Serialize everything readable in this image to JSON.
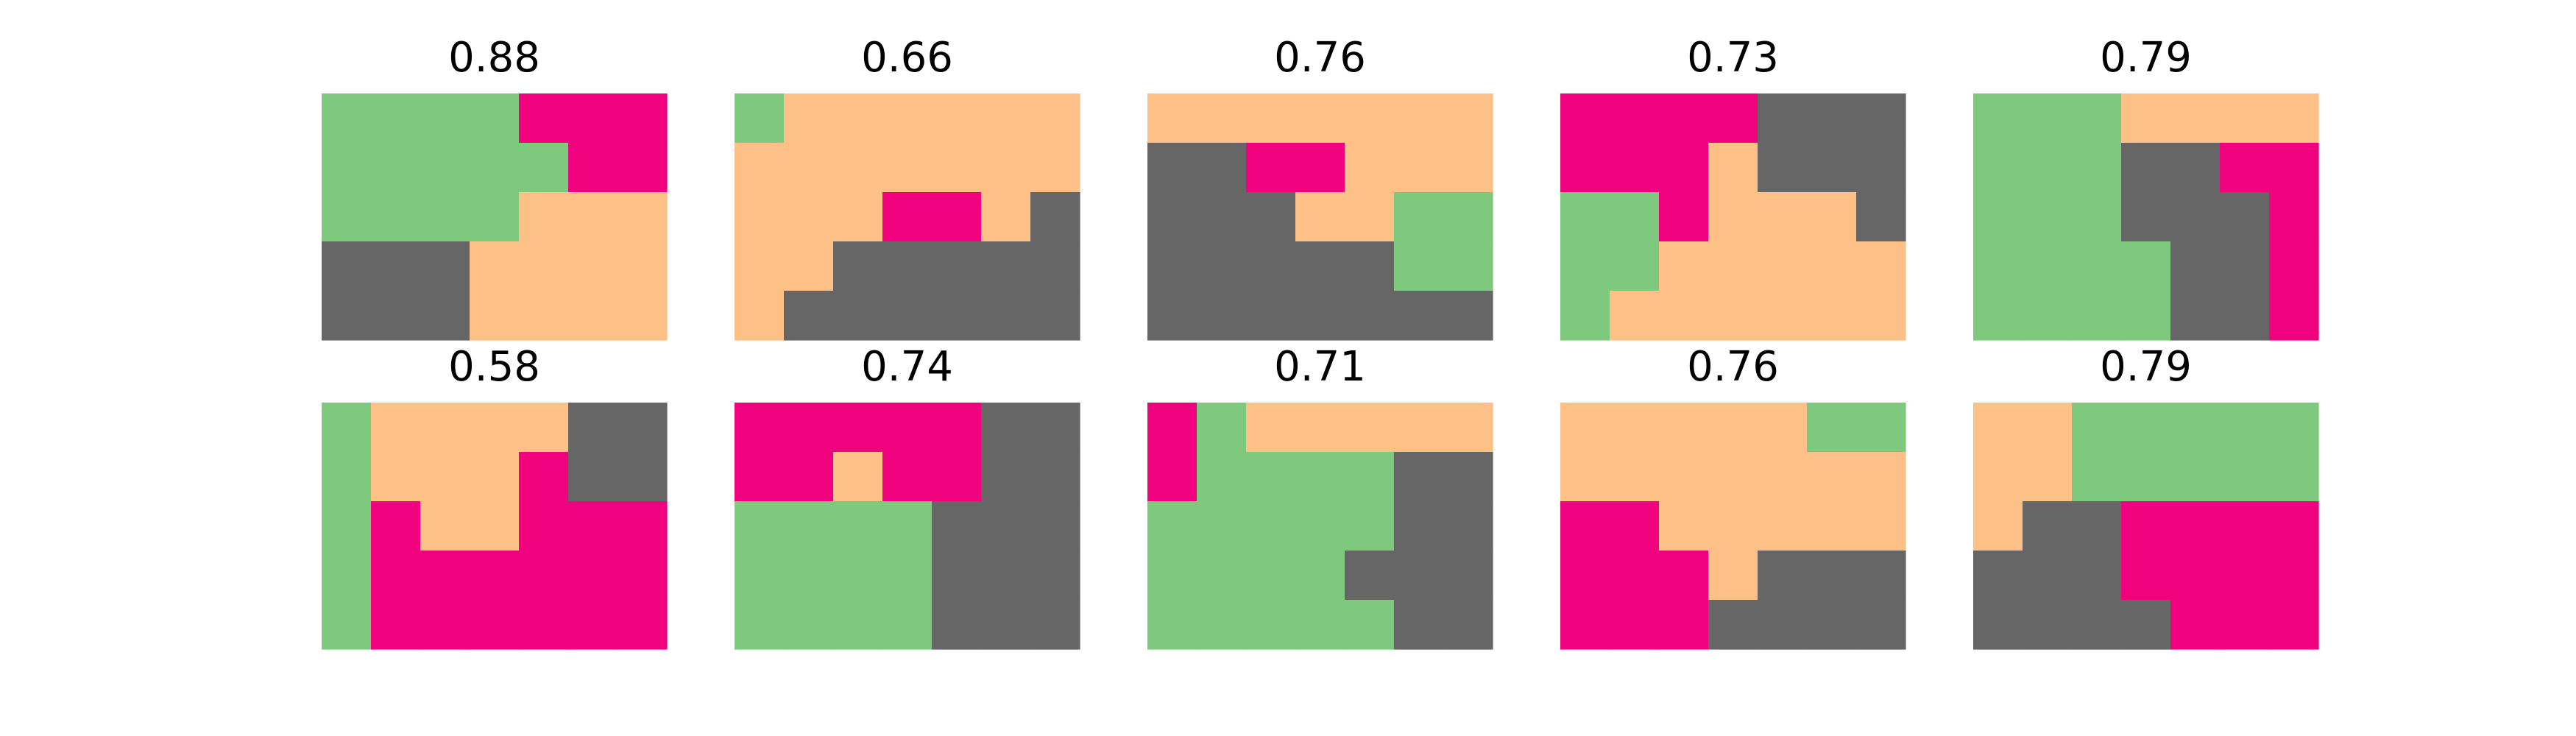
{
  "chart_data": {
    "type": "heatmap",
    "palette": {
      "0": "#7fc97f",
      "1": "#fdc086",
      "2": "#f0027f",
      "3": "#666666"
    },
    "panels": [
      {
        "title": "0.88",
        "grid": [
          [
            0,
            0,
            0,
            0,
            2,
            2,
            2
          ],
          [
            0,
            0,
            0,
            0,
            0,
            2,
            2
          ],
          [
            0,
            0,
            0,
            0,
            1,
            1,
            1
          ],
          [
            3,
            3,
            3,
            1,
            1,
            1,
            1
          ],
          [
            3,
            3,
            3,
            1,
            1,
            1,
            1
          ]
        ]
      },
      {
        "title": "0.66",
        "grid": [
          [
            0,
            1,
            1,
            1,
            1,
            1,
            1
          ],
          [
            1,
            1,
            1,
            1,
            1,
            1,
            1
          ],
          [
            1,
            1,
            1,
            2,
            2,
            1,
            3
          ],
          [
            1,
            1,
            3,
            3,
            3,
            3,
            3
          ],
          [
            1,
            3,
            3,
            3,
            3,
            3,
            3
          ]
        ]
      },
      {
        "title": "0.76",
        "grid": [
          [
            1,
            1,
            1,
            1,
            1,
            1,
            1
          ],
          [
            3,
            3,
            2,
            2,
            1,
            1,
            1
          ],
          [
            3,
            3,
            3,
            1,
            1,
            0,
            0
          ],
          [
            3,
            3,
            3,
            3,
            3,
            0,
            0
          ],
          [
            3,
            3,
            3,
            3,
            3,
            3,
            3
          ]
        ]
      },
      {
        "title": "0.73",
        "grid": [
          [
            2,
            2,
            2,
            2,
            3,
            3,
            3
          ],
          [
            2,
            2,
            2,
            1,
            3,
            3,
            3
          ],
          [
            0,
            0,
            2,
            1,
            1,
            1,
            3
          ],
          [
            0,
            0,
            1,
            1,
            1,
            1,
            1
          ],
          [
            0,
            1,
            1,
            1,
            1,
            1,
            1
          ]
        ]
      },
      {
        "title": "0.79",
        "grid": [
          [
            0,
            0,
            0,
            1,
            1,
            1,
            1
          ],
          [
            0,
            0,
            0,
            3,
            3,
            2,
            2
          ],
          [
            0,
            0,
            0,
            3,
            3,
            3,
            2
          ],
          [
            0,
            0,
            0,
            0,
            3,
            3,
            2
          ],
          [
            0,
            0,
            0,
            0,
            3,
            3,
            2
          ]
        ]
      },
      {
        "title": "0.58",
        "grid": [
          [
            0,
            1,
            1,
            1,
            1,
            3,
            3
          ],
          [
            0,
            1,
            1,
            1,
            2,
            3,
            3
          ],
          [
            0,
            2,
            1,
            1,
            2,
            2,
            2
          ],
          [
            0,
            2,
            2,
            2,
            2,
            2,
            2
          ],
          [
            0,
            2,
            2,
            2,
            2,
            2,
            2
          ]
        ]
      },
      {
        "title": "0.74",
        "grid": [
          [
            2,
            2,
            2,
            2,
            2,
            3,
            3
          ],
          [
            2,
            2,
            1,
            2,
            2,
            3,
            3
          ],
          [
            0,
            0,
            0,
            0,
            3,
            3,
            3
          ],
          [
            0,
            0,
            0,
            0,
            3,
            3,
            3
          ],
          [
            0,
            0,
            0,
            0,
            3,
            3,
            3
          ]
        ]
      },
      {
        "title": "0.71",
        "grid": [
          [
            2,
            0,
            1,
            1,
            1,
            1,
            1
          ],
          [
            2,
            0,
            0,
            0,
            0,
            3,
            3
          ],
          [
            0,
            0,
            0,
            0,
            0,
            3,
            3
          ],
          [
            0,
            0,
            0,
            0,
            3,
            3,
            3
          ],
          [
            0,
            0,
            0,
            0,
            0,
            3,
            3
          ]
        ]
      },
      {
        "title": "0.76",
        "grid": [
          [
            1,
            1,
            1,
            1,
            1,
            0,
            0
          ],
          [
            1,
            1,
            1,
            1,
            1,
            1,
            1
          ],
          [
            2,
            2,
            1,
            1,
            1,
            1,
            1
          ],
          [
            2,
            2,
            2,
            1,
            3,
            3,
            3
          ],
          [
            2,
            2,
            2,
            3,
            3,
            3,
            3
          ]
        ]
      },
      {
        "title": "0.79",
        "grid": [
          [
            1,
            1,
            0,
            0,
            0,
            0,
            0
          ],
          [
            1,
            1,
            0,
            0,
            0,
            0,
            0
          ],
          [
            1,
            3,
            3,
            2,
            2,
            2,
            2
          ],
          [
            3,
            3,
            3,
            2,
            2,
            2,
            2
          ],
          [
            3,
            3,
            3,
            3,
            2,
            2,
            2
          ]
        ]
      }
    ]
  }
}
